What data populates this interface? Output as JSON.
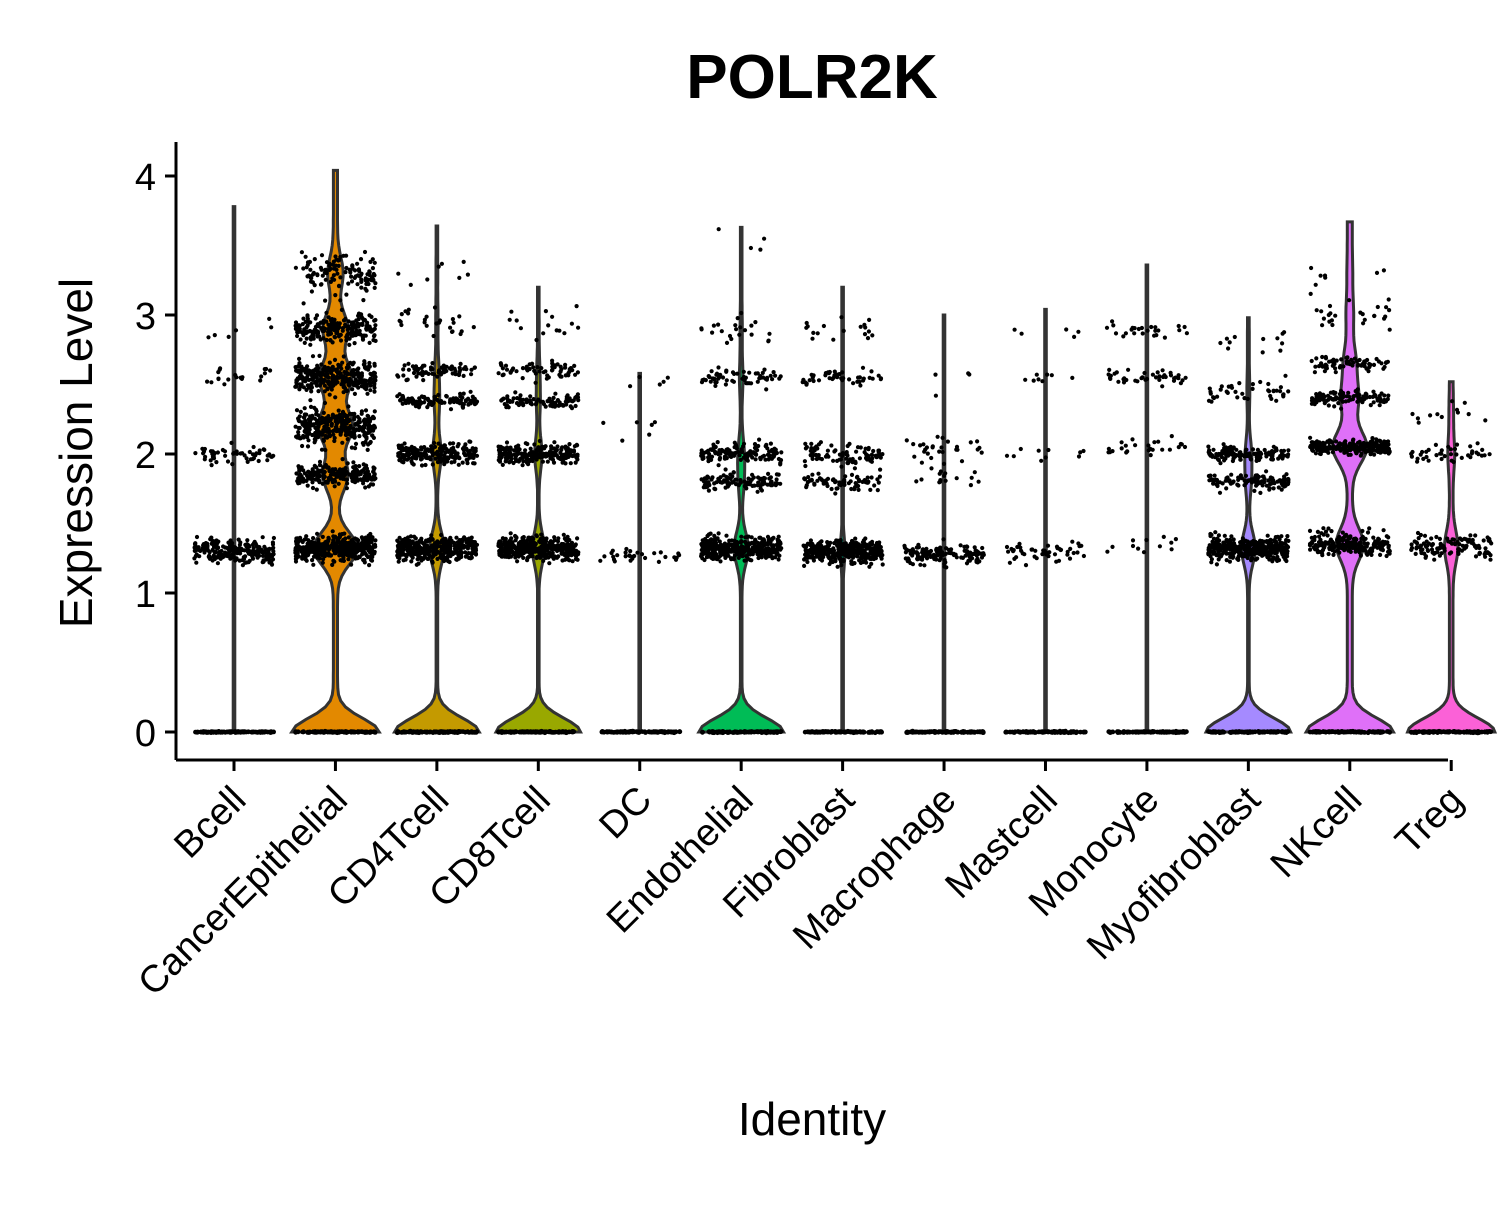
{
  "chart_data": {
    "type": "violin",
    "title": "POLR2K",
    "xlabel": "Identity",
    "ylabel": "Expression Level",
    "ylim": [
      -0.2,
      4.25
    ],
    "yticks": [
      0,
      1,
      2,
      3,
      4
    ],
    "grid": false,
    "legend": "none",
    "categories": [
      "Bcell",
      "CancerEpithelial",
      "CD4Tcell",
      "CD8Tcell",
      "DC",
      "Endothelial",
      "Fibroblast",
      "Macrophage",
      "Mastcell",
      "Monocyte",
      "Myofibroblast",
      "NKcell",
      "Treg"
    ],
    "series": [
      {
        "category": "Bcell",
        "color": "#F8766D",
        "max": 3.78,
        "zero_bulge": 0.0,
        "density": 0.02,
        "bands": [
          [
            1.3,
            220,
            0.09
          ],
          [
            2.0,
            55,
            0.06
          ],
          [
            2.55,
            20,
            0.08
          ],
          [
            2.9,
            6,
            0.12
          ]
        ]
      },
      {
        "category": "CancerEpithelial",
        "color": "#E38900",
        "max": 4.04,
        "zero_bulge": 0.42,
        "density": 0.35,
        "bands": [
          [
            1.32,
            420,
            0.09
          ],
          [
            1.85,
            220,
            0.08
          ],
          [
            2.2,
            320,
            0.12
          ],
          [
            2.55,
            300,
            0.11
          ],
          [
            2.9,
            220,
            0.1
          ],
          [
            3.3,
            120,
            0.15
          ]
        ]
      },
      {
        "category": "CD4Tcell",
        "color": "#C49A00",
        "max": 3.64,
        "zero_bulge": 0.4,
        "density": 0.12,
        "bands": [
          [
            1.32,
            380,
            0.08
          ],
          [
            2.0,
            210,
            0.07
          ],
          [
            2.38,
            110,
            0.05
          ],
          [
            2.6,
            70,
            0.06
          ],
          [
            2.95,
            25,
            0.1
          ],
          [
            3.3,
            8,
            0.12
          ]
        ]
      },
      {
        "category": "CD8Tcell",
        "color": "#99A800",
        "max": 3.2,
        "zero_bulge": 0.4,
        "density": 0.1,
        "bands": [
          [
            1.32,
            380,
            0.08
          ],
          [
            2.0,
            210,
            0.07
          ],
          [
            2.38,
            90,
            0.05
          ],
          [
            2.6,
            60,
            0.06
          ],
          [
            2.95,
            15,
            0.1
          ]
        ]
      },
      {
        "category": "DC",
        "color": "#53B400",
        "max": 2.58,
        "zero_bulge": 0.0,
        "density": 0.0,
        "bands": [
          [
            1.26,
            30,
            0.05
          ],
          [
            2.1,
            6,
            0.2
          ],
          [
            2.5,
            5,
            0.08
          ]
        ]
      },
      {
        "category": "Endothelial",
        "color": "#00BC56",
        "max": 3.63,
        "zero_bulge": 0.4,
        "density": 0.12,
        "bands": [
          [
            1.32,
            380,
            0.08
          ],
          [
            1.8,
            110,
            0.06
          ],
          [
            2.0,
            130,
            0.07
          ],
          [
            2.55,
            60,
            0.06
          ],
          [
            2.9,
            22,
            0.1
          ],
          [
            3.5,
            4,
            0.12
          ]
        ]
      },
      {
        "category": "Fibroblast",
        "color": "#00C094",
        "max": 3.2,
        "zero_bulge": 0.0,
        "density": 0.04,
        "bands": [
          [
            1.3,
            360,
            0.08
          ],
          [
            1.8,
            70,
            0.06
          ],
          [
            2.0,
            90,
            0.08
          ],
          [
            2.55,
            45,
            0.06
          ],
          [
            2.9,
            18,
            0.1
          ]
        ]
      },
      {
        "category": "Macrophage",
        "color": "#00BFC4",
        "max": 3.0,
        "zero_bulge": 0.0,
        "density": 0.0,
        "bands": [
          [
            1.28,
            140,
            0.07
          ],
          [
            1.85,
            20,
            0.1
          ],
          [
            2.05,
            25,
            0.08
          ],
          [
            2.5,
            4,
            0.1
          ]
        ]
      },
      {
        "category": "Mastcell",
        "color": "#00B6EB",
        "max": 3.04,
        "zero_bulge": 0.0,
        "density": 0.0,
        "bands": [
          [
            1.3,
            50,
            0.07
          ],
          [
            2.0,
            10,
            0.08
          ],
          [
            2.55,
            8,
            0.06
          ],
          [
            2.85,
            5,
            0.06
          ]
        ]
      },
      {
        "category": "Monocyte",
        "color": "#06A4FF",
        "max": 3.36,
        "zero_bulge": 0.0,
        "density": 0.0,
        "bands": [
          [
            1.35,
            12,
            0.08
          ],
          [
            2.05,
            25,
            0.06
          ],
          [
            2.55,
            40,
            0.05
          ],
          [
            2.88,
            25,
            0.05
          ]
        ]
      },
      {
        "category": "Myofibroblast",
        "color": "#A58AFF",
        "max": 2.98,
        "zero_bulge": 0.4,
        "density": 0.12,
        "bands": [
          [
            1.32,
            360,
            0.08
          ],
          [
            1.8,
            110,
            0.06
          ],
          [
            2.0,
            130,
            0.06
          ],
          [
            2.45,
            40,
            0.08
          ],
          [
            2.8,
            12,
            0.1
          ]
        ]
      },
      {
        "category": "NKcell",
        "color": "#DF70F8",
        "max": 3.67,
        "zero_bulge": 0.42,
        "density": 0.42,
        "bands": [
          [
            1.35,
            200,
            0.08
          ],
          [
            2.05,
            260,
            0.05
          ],
          [
            2.4,
            110,
            0.05
          ],
          [
            2.65,
            70,
            0.05
          ],
          [
            3.0,
            25,
            0.1
          ],
          [
            3.3,
            8,
            0.1
          ]
        ]
      },
      {
        "category": "Treg",
        "color": "#FB61D7",
        "max": 2.52,
        "zero_bulge": 0.42,
        "density": 0.3,
        "bands": [
          [
            1.33,
            120,
            0.08
          ],
          [
            2.0,
            40,
            0.07
          ],
          [
            2.3,
            12,
            0.1
          ]
        ]
      }
    ]
  }
}
